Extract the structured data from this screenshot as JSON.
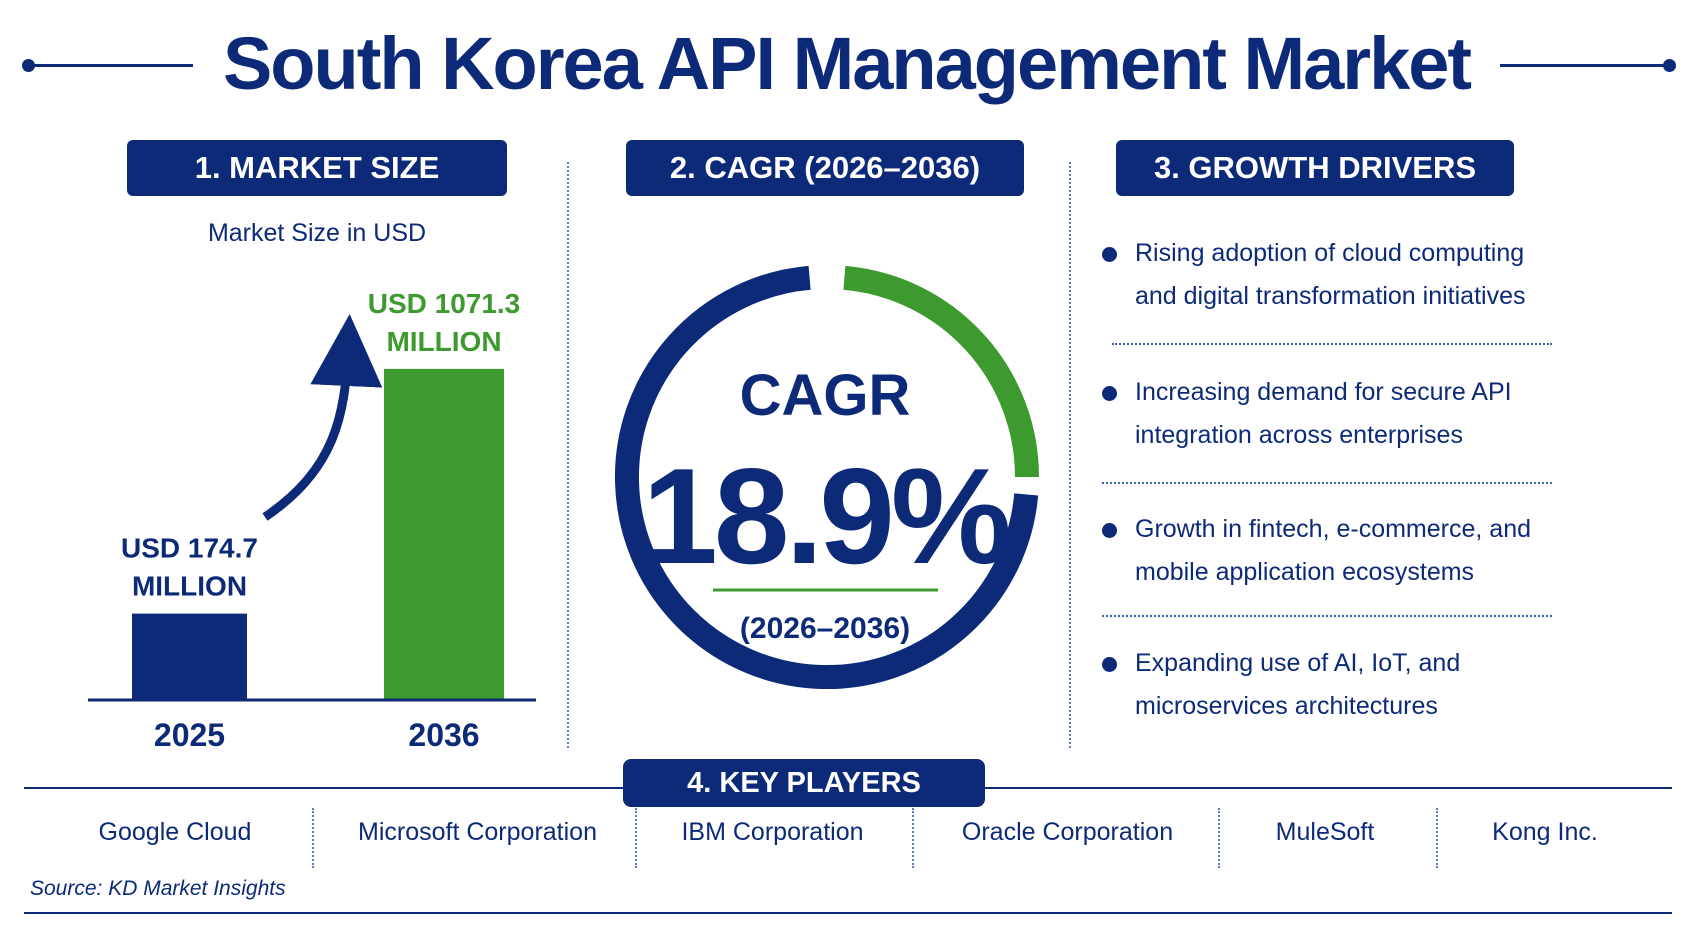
{
  "title": "South Korea API Management Market",
  "colors": {
    "navy": "#0d2a78",
    "green": "#3d9a2e"
  },
  "sections": {
    "market_size": {
      "heading": "1. MARKET SIZE",
      "subtitle": "Market Size in USD"
    },
    "cagr": {
      "heading": "2. CAGR (2026–2036)",
      "label": "CAGR",
      "value": "18.9%",
      "period": "(2026–2036)",
      "ring_fraction": 0.2
    },
    "drivers": {
      "heading": "3. GROWTH DRIVERS",
      "items": [
        {
          "line1": "Rising adoption of cloud computing",
          "line2": "and digital transformation initiatives"
        },
        {
          "line1": "Increasing demand for secure API",
          "line2": "integration across enterprises"
        },
        {
          "line1": "Growth in fintech, e-commerce, and",
          "line2": "mobile application ecosystems"
        },
        {
          "line1": "Expanding use of AI, IoT, and",
          "line2": "microservices architectures"
        }
      ]
    },
    "key_players": {
      "heading": "4. KEY PLAYERS",
      "items": [
        "Google Cloud",
        "Microsoft Corporation",
        "IBM Corporation",
        "Oracle Corporation",
        "MuleSoft",
        "Kong Inc."
      ]
    }
  },
  "source": "Source: KD Market Insights",
  "chart_data": {
    "type": "bar",
    "categories": [
      "2025",
      "2036"
    ],
    "values": [
      174.7,
      1071.3
    ],
    "value_labels": [
      {
        "line1": "USD 174.7",
        "line2": "MILLION"
      },
      {
        "line1": "USD 1071.3",
        "line2": "MILLION"
      }
    ],
    "colors": [
      "#0d2a78",
      "#3d9a2e"
    ],
    "title": "Market Size in USD",
    "ylim": [
      0,
      1100
    ]
  }
}
